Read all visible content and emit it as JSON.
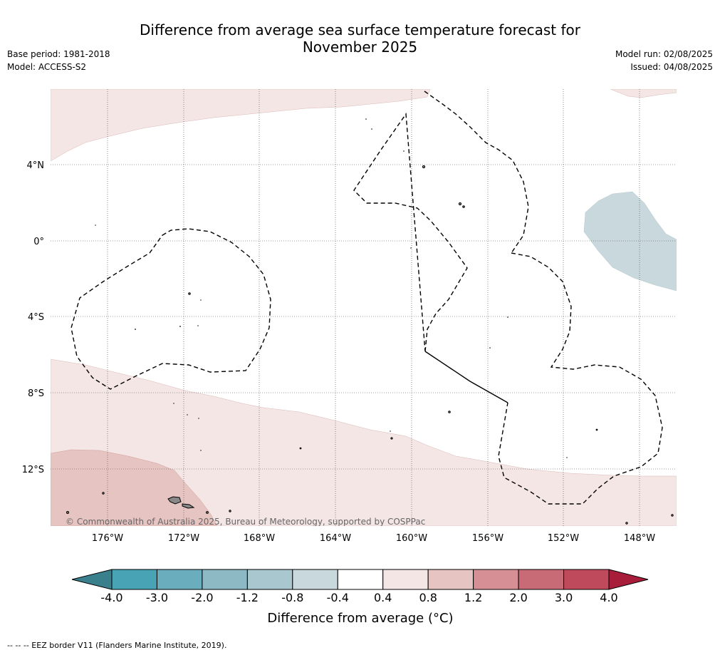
{
  "header": {
    "title_line1": "Difference from average sea surface temperature forecast for",
    "title_line2": "November 2025",
    "base_period": "Base period: 1981-2018",
    "model": "Model: ACCESS-S2",
    "model_run": "Model run: 02/08/2025",
    "issued": "Issued: 04/08/2025"
  },
  "map": {
    "latitude_labels": [
      "4°N",
      "0°",
      "4°S",
      "8°S",
      "12°S"
    ],
    "longitude_labels": [
      "176°W",
      "172°W",
      "168°W",
      "164°W",
      "160°W",
      "156°W",
      "152°W",
      "148°W"
    ],
    "copyright": "© Commonwealth of Australia 2025, Bureau of Meteorology, supported by COSPPac"
  },
  "colorbar": {
    "title": "Difference from average (°C)",
    "tick_labels": [
      "-4.0",
      "-3.0",
      "-2.0",
      "-1.2",
      "-0.8",
      "-0.4",
      "0.4",
      "0.8",
      "1.2",
      "2.0",
      "3.0",
      "4.0"
    ],
    "colors": [
      "#48a3b4",
      "#6aadbd",
      "#8db9c5",
      "#a8c7ce",
      "#c8d8dd",
      "#ffffff",
      "#f4e6e5",
      "#e6c4c1",
      "#d68f95",
      "#c96b76",
      "#be4a5b"
    ],
    "under_color": "#3a7f8c",
    "over_color": "#a71d3a"
  },
  "footer": {
    "legend_text": "-- -- -- EEZ border V11 (Flanders Marine Institute, 2019)."
  }
}
